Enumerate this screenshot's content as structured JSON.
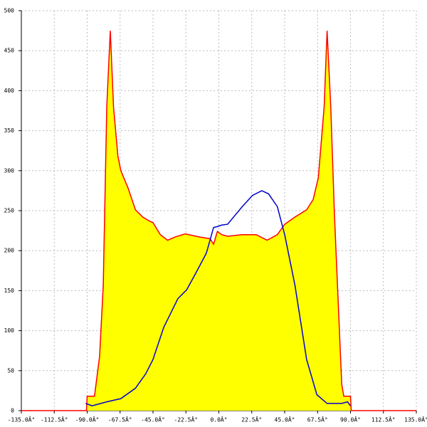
{
  "chart_data": {
    "type": "area",
    "xlim": [
      -135,
      135
    ],
    "ylim": [
      0,
      500
    ],
    "xticks": [
      {
        "value": -135,
        "label": "-135.0Â°"
      },
      {
        "value": -112.5,
        "label": "-112.5Â°"
      },
      {
        "value": -90,
        "label": "-90.0Â°"
      },
      {
        "value": -67.5,
        "label": "-67.5Â°"
      },
      {
        "value": -45,
        "label": "-45.0Â°"
      },
      {
        "value": -22.5,
        "label": "-22.5Â°"
      },
      {
        "value": 0,
        "label": "0.0Â°"
      },
      {
        "value": 22.5,
        "label": "22.5Â°"
      },
      {
        "value": 45,
        "label": "45.0Â°"
      },
      {
        "value": 67.5,
        "label": "67.5Â°"
      },
      {
        "value": 90,
        "label": "90.0Â°"
      },
      {
        "value": 112.5,
        "label": "112.5Â°"
      },
      {
        "value": 135,
        "label": "135.0Â°"
      }
    ],
    "yticks": [
      0,
      50,
      100,
      150,
      200,
      250,
      300,
      350,
      400,
      450,
      500
    ],
    "grid": true,
    "series": [
      {
        "color": "#ff0000",
        "fill": "#ffff00",
        "x": [
          -135,
          -90.5,
          -90,
          -85,
          -81.5,
          -79,
          -76.6,
          -74.2,
          -72,
          -69,
          -67,
          -62,
          -57,
          -52,
          -47.5,
          -45,
          -40,
          -35,
          -30,
          -23,
          -13,
          -6,
          -3.6,
          -1,
          2,
          6,
          16,
          25.5,
          33,
          40,
          45,
          52,
          60,
          64.5,
          68,
          72,
          74,
          76.5,
          79,
          84,
          85.4,
          90,
          90.5,
          135
        ],
        "values": [
          0,
          0,
          18,
          18,
          68,
          157,
          380,
          475,
          380,
          318,
          300,
          278,
          251,
          242,
          237,
          235,
          220,
          213,
          217,
          221,
          217,
          215,
          208,
          224,
          220,
          218,
          220,
          220,
          213,
          220,
          233,
          242,
          251,
          264,
          291,
          380,
          475,
          380,
          246,
          33,
          18,
          18,
          0,
          0
        ]
      },
      {
        "color": "#0000cc",
        "x": [
          -91,
          -86.6,
          -76.6,
          -67,
          -57,
          -50,
          -45,
          -37.7,
          -28,
          -22,
          -16,
          -8.5,
          -3.6,
          -1.2,
          2,
          6,
          16,
          23,
          29.4,
          34,
          40,
          45,
          52,
          60,
          67,
          74,
          84,
          88,
          90
        ],
        "values": [
          9,
          6,
          11,
          15,
          28,
          46,
          64,
          104,
          140,
          151,
          171,
          197,
          229,
          230,
          232,
          233,
          255,
          269,
          275,
          271,
          255,
          220,
          157,
          64,
          20,
          9,
          9,
          11,
          6
        ]
      }
    ]
  }
}
